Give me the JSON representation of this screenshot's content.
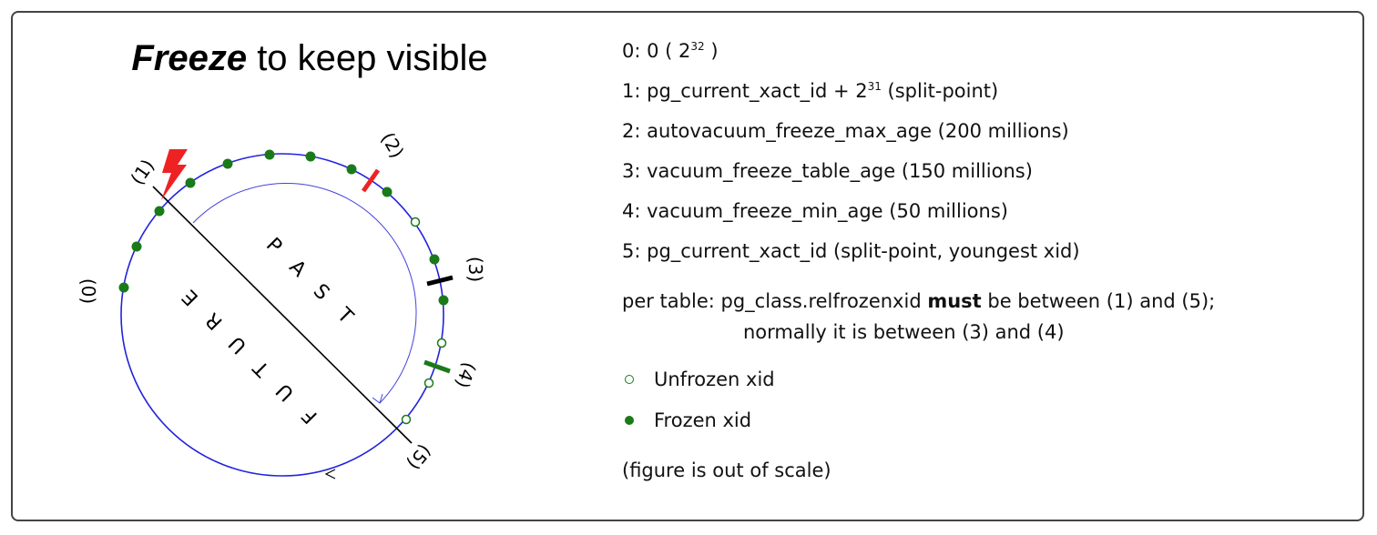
{
  "title": {
    "bold": "Freeze",
    "rest": " to keep visible"
  },
  "diagram": {
    "labels": [
      "(0)",
      "(1)",
      "(2)",
      "(3)",
      "(4)",
      "(5)"
    ],
    "past_letters": [
      "P",
      "A",
      "S",
      "T"
    ],
    "future_letters": [
      "F",
      "U",
      "T",
      "U",
      "R",
      "E"
    ],
    "colors": {
      "circle": "#2222dd",
      "frozen": "#1a7a1a",
      "mark2": "#ee2222",
      "mark3": "#000000",
      "mark4": "#1a7a1a",
      "bolt": "#ee2222"
    }
  },
  "legend_lines": {
    "l0": {
      "pre": "0: 0 ( 2",
      "sup": "32",
      "post": " )"
    },
    "l1": {
      "pre": "1: pg_current_xact_id + 2",
      "sup": "31",
      "post": " (split-point)"
    },
    "l2": "2: autovacuum_freeze_max_age (200 millions)",
    "l3": "3: vacuum_freeze_table_age (150 millions)",
    "l4": "4: vacuum_freeze_min_age (50 millions)",
    "l5": "5: pg_current_xact_id (split-point, youngest xid)"
  },
  "rule": {
    "pre": "per table: pg_class.relfrozenxid ",
    "bold": "must",
    "post": " be between (1) and (5);",
    "line2": "normally it is between (3) and (4)"
  },
  "legend": {
    "unfrozen": "Unfrozen xid",
    "frozen": "Frozen xid"
  },
  "note": "(figure is out of scale)"
}
